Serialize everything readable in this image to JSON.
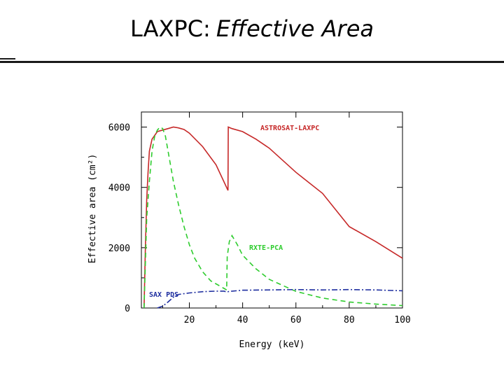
{
  "slide": {
    "title_main": "LAXPC:",
    "title_em": "Effective Area"
  },
  "chart_data": {
    "type": "line",
    "title": "",
    "xlabel": "Energy (keV)",
    "ylabel": "Effective area (cm²)",
    "xlim": [
      0,
      100
    ],
    "ylim": [
      0,
      6500
    ],
    "xticks": [
      20,
      40,
      60,
      80,
      100
    ],
    "yticks": [
      0,
      2000,
      4000,
      6000
    ],
    "grid": false,
    "series": [
      {
        "name": "ASTROSAT-LAXPC",
        "color": "#c62828",
        "dash": "solid",
        "points": [
          [
            3,
            0
          ],
          [
            3.5,
            2000
          ],
          [
            4,
            3600
          ],
          [
            4.5,
            4500
          ],
          [
            5,
            5200
          ],
          [
            6,
            5600
          ],
          [
            8,
            5850
          ],
          [
            10,
            5900
          ],
          [
            12,
            5950
          ],
          [
            14,
            6000
          ],
          [
            16,
            5970
          ],
          [
            18,
            5920
          ],
          [
            20,
            5800
          ],
          [
            25,
            5350
          ],
          [
            30,
            4750
          ],
          [
            34.5,
            3900
          ],
          [
            34.6,
            6000
          ],
          [
            36,
            5950
          ],
          [
            40,
            5850
          ],
          [
            45,
            5600
          ],
          [
            50,
            5300
          ],
          [
            60,
            4500
          ],
          [
            70,
            3800
          ],
          [
            80,
            2700
          ],
          [
            90,
            2200
          ],
          [
            100,
            1650
          ]
        ]
      },
      {
        "name": "RXTE-PCA",
        "color": "#2ecc2e",
        "dash": "7,5",
        "points": [
          [
            3,
            0
          ],
          [
            3.5,
            1500
          ],
          [
            4,
            3000
          ],
          [
            5,
            4200
          ],
          [
            6,
            5200
          ],
          [
            7,
            5700
          ],
          [
            8,
            5900
          ],
          [
            9,
            6000
          ],
          [
            10,
            5950
          ],
          [
            11,
            5700
          ],
          [
            12,
            5200
          ],
          [
            13,
            4700
          ],
          [
            14,
            4200
          ],
          [
            16,
            3400
          ],
          [
            18,
            2700
          ],
          [
            20,
            2100
          ],
          [
            22,
            1650
          ],
          [
            25,
            1200
          ],
          [
            28,
            900
          ],
          [
            30,
            800
          ],
          [
            33,
            650
          ],
          [
            34,
            600
          ],
          [
            34.2,
            1700
          ],
          [
            35,
            2200
          ],
          [
            36,
            2400
          ],
          [
            38,
            2100
          ],
          [
            40,
            1750
          ],
          [
            45,
            1300
          ],
          [
            50,
            950
          ],
          [
            55,
            750
          ],
          [
            60,
            550
          ],
          [
            70,
            330
          ],
          [
            80,
            200
          ],
          [
            90,
            130
          ],
          [
            100,
            80
          ]
        ]
      },
      {
        "name": "SAX PDS",
        "color": "#1f2fa0",
        "dash": "8,3,2,3",
        "points": [
          [
            8,
            0
          ],
          [
            10,
            60
          ],
          [
            12,
            200
          ],
          [
            14,
            360
          ],
          [
            16,
            450
          ],
          [
            20,
            500
          ],
          [
            25,
            540
          ],
          [
            30,
            560
          ],
          [
            33,
            560
          ],
          [
            34,
            530
          ],
          [
            35,
            550
          ],
          [
            40,
            590
          ],
          [
            50,
            600
          ],
          [
            60,
            610
          ],
          [
            70,
            600
          ],
          [
            80,
            610
          ],
          [
            90,
            600
          ],
          [
            100,
            570
          ]
        ]
      }
    ]
  }
}
